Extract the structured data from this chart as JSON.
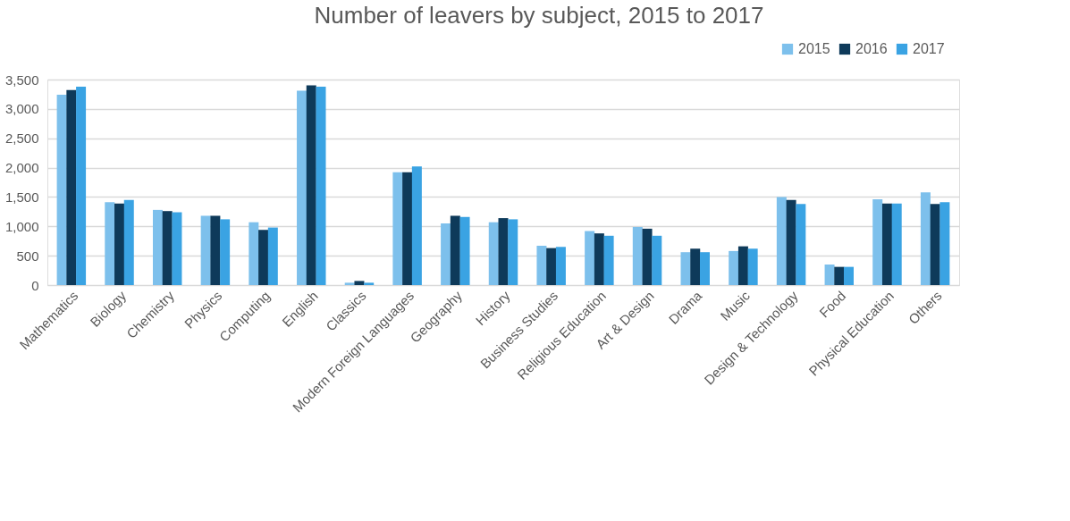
{
  "chart_data": {
    "type": "bar",
    "title": "Number of leavers by subject, 2015 to 2017",
    "categories": [
      "Mathematics",
      "Biology",
      "Chemistry",
      "Physics",
      "Computing",
      "English",
      "Classics",
      "Modern Foreign Languages",
      "Geography",
      "History",
      "Business Studies",
      "Religious Education",
      "Art & Design",
      "Drama",
      "Music",
      "Design & Technology",
      "Food",
      "Physical Education",
      "Others"
    ],
    "series": [
      {
        "name": "2015",
        "color": "#7dc0ec",
        "values": [
          3240,
          1410,
          1280,
          1180,
          1070,
          3310,
          40,
          1920,
          1050,
          1070,
          670,
          920,
          990,
          560,
          580,
          1500,
          350,
          1460,
          1580
        ]
      },
      {
        "name": "2016",
        "color": "#0e3a5a",
        "values": [
          3320,
          1390,
          1260,
          1180,
          940,
          3400,
          70,
          1920,
          1180,
          1140,
          630,
          880,
          960,
          620,
          660,
          1450,
          310,
          1390,
          1380
        ]
      },
      {
        "name": "2017",
        "color": "#3aa3e3",
        "values": [
          3380,
          1450,
          1240,
          1120,
          980,
          3380,
          40,
          2020,
          1160,
          1120,
          650,
          840,
          840,
          560,
          620,
          1380,
          310,
          1390,
          1410
        ]
      }
    ],
    "ylim": [
      0,
      3500
    ],
    "yticks": [
      0,
      500,
      {
        "value": 1000,
        "label": "1,000"
      },
      {
        "value": 1500,
        "label": "1,500"
      },
      {
        "value": 2000,
        "label": "2,000"
      },
      {
        "value": 2500,
        "label": "2,500"
      },
      {
        "value": 3000,
        "label": "3,000"
      },
      {
        "value": 3500,
        "label": "3,500"
      }
    ],
    "grid": "y",
    "legend": "top right"
  }
}
